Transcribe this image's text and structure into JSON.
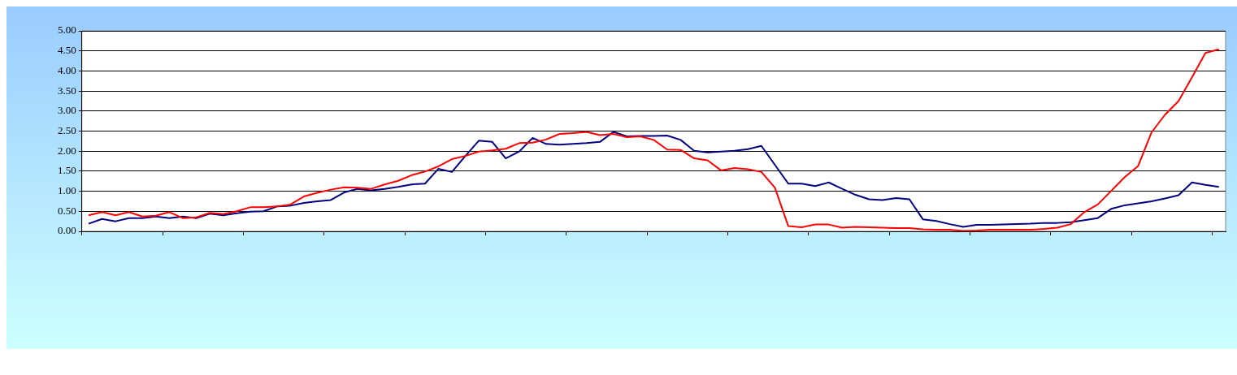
{
  "chart_data": {
    "type": "line",
    "categories": [
      null,
      null,
      null,
      null,
      null,
      null,
      null,
      null,
      null,
      null,
      null,
      null,
      null,
      null,
      null,
      null,
      null,
      null,
      null,
      null,
      null,
      null,
      null,
      null,
      null,
      null,
      null,
      null,
      null,
      null,
      null,
      null,
      null,
      null,
      null,
      null,
      null,
      null,
      null,
      null,
      null,
      null,
      null,
      null,
      null,
      null,
      null,
      null,
      null,
      null,
      null,
      null,
      null,
      null,
      null,
      null,
      null,
      null,
      null,
      null,
      null,
      null,
      null,
      null,
      null,
      null,
      null,
      null,
      null,
      null,
      null,
      null,
      null,
      null,
      null,
      null,
      null,
      null,
      null,
      null,
      null,
      null,
      null,
      null,
      null
    ],
    "series": [
      {
        "color": "#ff0000",
        "values": [
          0.4,
          0.48,
          0.4,
          0.48,
          0.37,
          0.39,
          0.48,
          0.33,
          0.35,
          0.46,
          0.43,
          0.5,
          0.6,
          0.6,
          0.62,
          0.67,
          0.87,
          0.96,
          1.04,
          1.1,
          1.09,
          1.06,
          1.17,
          1.26,
          1.4,
          1.49,
          1.62,
          1.8,
          1.88,
          1.99,
          2.02,
          2.06,
          2.2,
          2.21,
          2.29,
          2.43,
          2.45,
          2.48,
          2.4,
          2.43,
          2.35,
          2.37,
          2.28,
          2.04,
          2.03,
          1.82,
          1.77,
          1.52,
          1.58,
          1.55,
          1.48,
          1.09,
          0.13,
          0.1,
          0.17,
          0.17,
          0.09,
          0.11,
          0.1,
          0.09,
          0.08,
          0.08,
          0.05,
          0.04,
          0.04,
          0.01,
          0.02,
          0.04,
          0.04,
          0.04,
          0.04,
          0.06,
          0.09,
          0.18,
          0.48,
          0.67,
          1.01,
          1.35,
          1.63,
          2.47,
          2.91,
          3.25,
          3.84,
          4.45,
          4.54
        ]
      },
      {
        "color": "#000080",
        "values": [
          0.19,
          0.31,
          0.25,
          0.33,
          0.33,
          0.37,
          0.33,
          0.37,
          0.33,
          0.44,
          0.4,
          0.45,
          0.49,
          0.5,
          0.62,
          0.64,
          0.71,
          0.75,
          0.78,
          0.97,
          1.06,
          1.02,
          1.06,
          1.11,
          1.17,
          1.19,
          1.56,
          1.48,
          1.88,
          2.26,
          2.23,
          1.82,
          1.99,
          2.33,
          2.18,
          2.16,
          2.18,
          2.2,
          2.23,
          2.48,
          2.37,
          2.38,
          2.38,
          2.39,
          2.28,
          2.01,
          1.97,
          1.99,
          2.01,
          2.05,
          2.13,
          1.66,
          1.19,
          1.19,
          1.13,
          1.22,
          1.06,
          0.91,
          0.8,
          0.78,
          0.83,
          0.8,
          0.3,
          0.26,
          0.18,
          0.11,
          0.16,
          0.16,
          0.17,
          0.18,
          0.19,
          0.21,
          0.21,
          0.23,
          0.28,
          0.33,
          0.56,
          0.65,
          0.7,
          0.75,
          0.82,
          0.9,
          1.22,
          1.16,
          1.11
        ]
      }
    ],
    "ylim": [
      0,
      5
    ],
    "yticks": [
      {
        "value": 0,
        "label": "0.00"
      },
      {
        "value": 0.5,
        "label": "0.50"
      },
      {
        "value": 1,
        "label": "1.00"
      },
      {
        "value": 1.5,
        "label": "1.50"
      },
      {
        "value": 2,
        "label": "2.00"
      },
      {
        "value": 2.5,
        "label": "2.50"
      },
      {
        "value": 3,
        "label": "3.00"
      },
      {
        "value": 3.5,
        "label": "3.50"
      },
      {
        "value": 4,
        "label": "4.00"
      },
      {
        "value": 4.5,
        "label": "4.50"
      },
      {
        "value": 5,
        "label": "5.00"
      }
    ],
    "grid": "y",
    "legend": false,
    "marker": "none",
    "line_style": "solid",
    "tick_labels": "y"
  }
}
